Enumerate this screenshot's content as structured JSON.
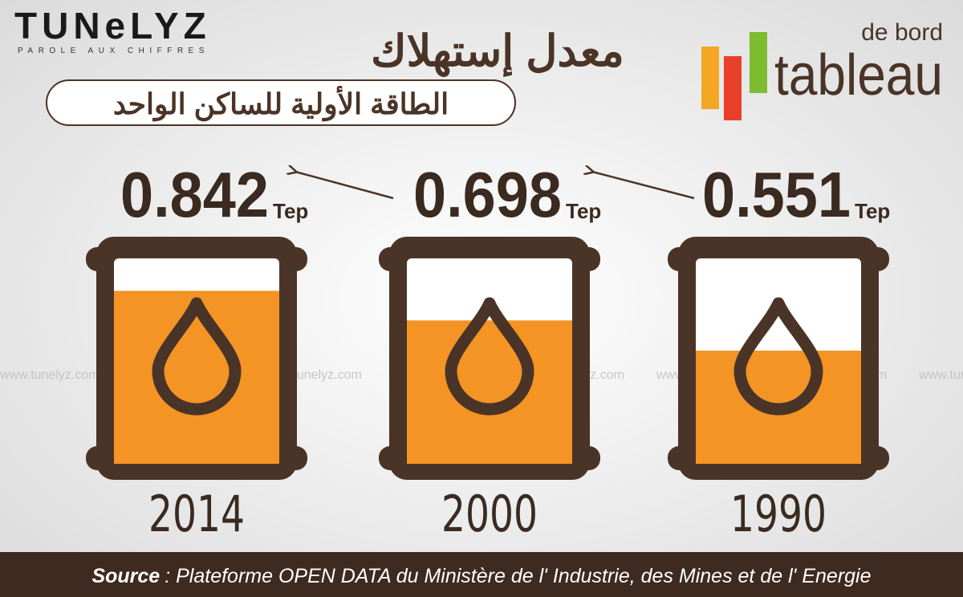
{
  "chart_data": {
    "type": "barrel",
    "title": "معدل إستهلاك",
    "subtitle": "الطاقة الأولية للساكن الواحد",
    "categories": [
      "2014",
      "2000",
      "1990"
    ],
    "values": [
      0.842,
      0.698,
      0.551
    ],
    "unit": "Tep",
    "color": "#f39425",
    "ylim": [
      0,
      1
    ]
  },
  "branding": {
    "logo": "TUNeLYZ",
    "tagline": "PAROLE AUX CHIFFRES",
    "tableau_top": "de bord",
    "tableau": "tableau",
    "watermark": "www.tunelyz.com"
  },
  "footer": {
    "source_label": "Source",
    "source_text": ": Plateforme OPEN DATA du Ministère de l' Industrie, des Mines et de l' Energie"
  }
}
